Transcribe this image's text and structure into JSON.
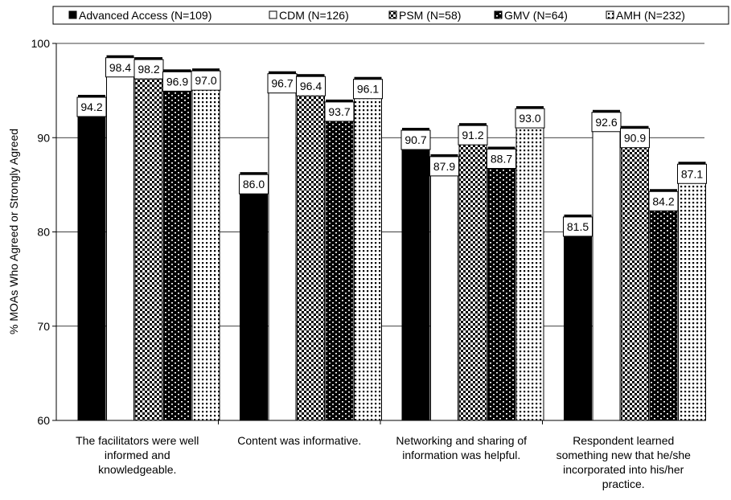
{
  "chart_data": {
    "type": "bar",
    "title": "",
    "xlabel": "",
    "ylabel": "% MOAs Who Agreed or Strongly Agreed",
    "ylim": [
      60,
      100
    ],
    "yticks": [
      60,
      70,
      80,
      90,
      100
    ],
    "grid": "horizontal",
    "legend_position": "top",
    "categories": [
      "The facilitators were well informed and knowledgeable.",
      "Content was informative.",
      "Networking and sharing of information was helpful.",
      "Respondent learned something new that he/she incorporated into his/her practice."
    ],
    "category_lines": [
      [
        "The facilitators were well",
        "informed and",
        "knowledgeable."
      ],
      [
        "Content was informative."
      ],
      [
        "Networking and sharing of",
        "information was helpful."
      ],
      [
        "Respondent learned",
        "something new that he/she",
        "incorporated into his/her",
        "practice."
      ]
    ],
    "series": [
      {
        "name": "Advanced Access (N=109)",
        "values": [
          94.2,
          86.0,
          90.7,
          81.5
        ],
        "labels": [
          "94.2",
          "86.0",
          "90.7",
          "81.5"
        ],
        "fill": "solid",
        "color": "#000000"
      },
      {
        "name": "CDM (N=126)",
        "values": [
          98.4,
          96.7,
          87.9,
          92.6
        ],
        "labels": [
          "98.4",
          "96.7",
          "87.9",
          "92.6"
        ],
        "fill": "white",
        "color": "#ffffff"
      },
      {
        "name": "PSM (N=58)",
        "values": [
          98.2,
          96.4,
          91.2,
          90.9
        ],
        "labels": [
          "98.2",
          "96.4",
          "91.2",
          "90.9"
        ],
        "fill": "checker",
        "color": "#000000"
      },
      {
        "name": "GMV (N=64)",
        "values": [
          96.9,
          93.7,
          88.7,
          84.2
        ],
        "labels": [
          "96.9",
          "93.7",
          "88.7",
          "84.2"
        ],
        "fill": "dash",
        "color": "#000000"
      },
      {
        "name": "AMH (N=232)",
        "values": [
          97.0,
          96.1,
          93.0,
          87.1
        ],
        "labels": [
          "97.0",
          "96.1",
          "93.0",
          "87.1"
        ],
        "fill": "dots",
        "color": "#000000"
      }
    ]
  }
}
